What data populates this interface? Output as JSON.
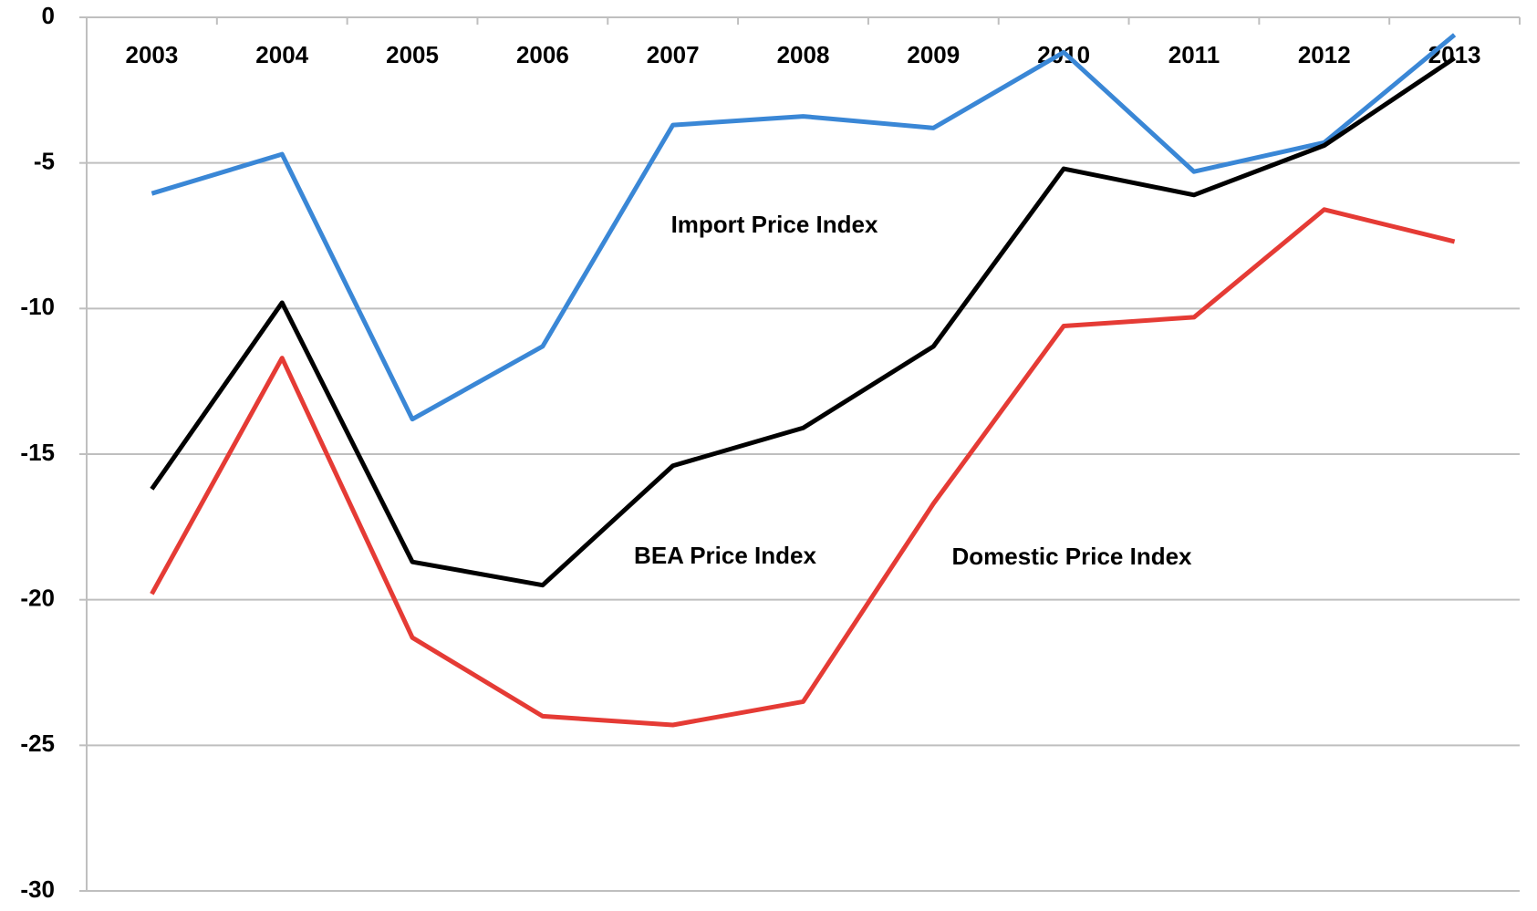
{
  "chart_data": {
    "type": "line",
    "categories": [
      "2003",
      "2004",
      "2005",
      "2006",
      "2007",
      "2008",
      "2009",
      "2010",
      "2011",
      "2012",
      "2013"
    ],
    "series": [
      {
        "name": "Import Price Index",
        "color": "#3a87d6",
        "values": [
          -6.05,
          -4.7,
          -13.8,
          -11.3,
          -3.7,
          -3.4,
          -3.8,
          -1.2,
          -5.3,
          -4.3,
          -0.6
        ]
      },
      {
        "name": "BEA Price Index",
        "color": "#000000",
        "values": [
          -16.2,
          -9.8,
          -18.7,
          -19.5,
          -15.4,
          -14.1,
          -11.3,
          -5.2,
          -6.1,
          -4.4,
          -1.4
        ]
      },
      {
        "name": "Domestic Price Index",
        "color": "#e53b35",
        "values": [
          -19.8,
          -11.7,
          -21.3,
          -24.0,
          -24.3,
          -23.5,
          -16.7,
          -10.6,
          -10.3,
          -6.6,
          -7.7
        ]
      }
    ],
    "ylim": [
      -30,
      0
    ],
    "yticks": [
      0,
      -5,
      -10,
      -15,
      -20,
      -25,
      -30
    ],
    "grid": true
  }
}
